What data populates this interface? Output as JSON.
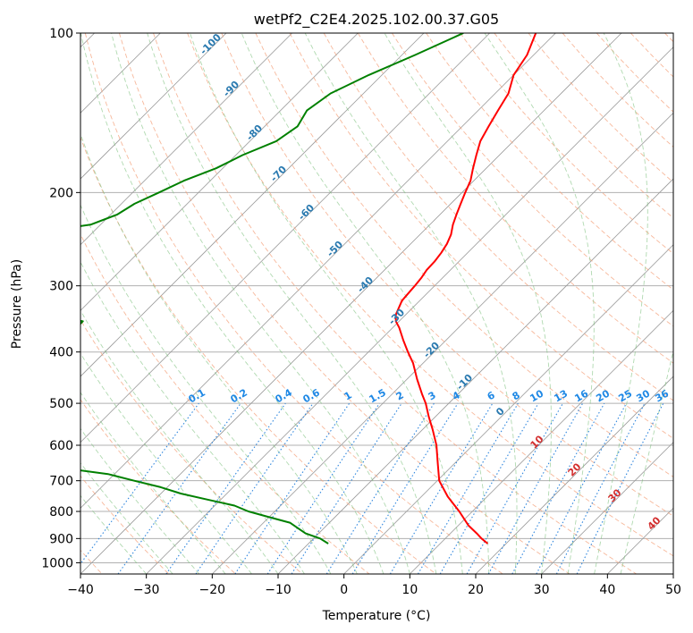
{
  "chart_data": {
    "type": "line",
    "title": "wetPf2_C2E4.2025.102.00.37.G05",
    "xlabel": "Temperature (°C)",
    "ylabel": "Pressure (hPa)",
    "xlim": [
      -40,
      50
    ],
    "ylim": [
      1050,
      100
    ],
    "y_scale": "log",
    "x_ticks": [
      "−40",
      "−30",
      "−20",
      "−10",
      "0",
      "10",
      "20",
      "30",
      "40",
      "50"
    ],
    "y_ticks": [
      "100",
      "200",
      "300",
      "400",
      "500",
      "600",
      "700",
      "800",
      "900",
      "1000"
    ],
    "grid": true,
    "series": [
      {
        "color": "#ff0000",
        "p": [
          100,
          110,
          120,
          130,
          140,
          150,
          160,
          170,
          180,
          190,
          200,
          210,
          220,
          230,
          240,
          250,
          260,
          270,
          280,
          290,
          300,
          320,
          340,
          350,
          360,
          380,
          400,
          420,
          450,
          480,
          500,
          530,
          560,
          600,
          650,
          700,
          750,
          800,
          850,
          880,
          900,
          920
        ],
        "t": [
          -53,
          -51,
          -50,
          -48,
          -47,
          -46,
          -45,
          -43.5,
          -42,
          -40.5,
          -39.5,
          -38.5,
          -37.5,
          -36.5,
          -35.3,
          -34.5,
          -34,
          -33.7,
          -33.6,
          -33.2,
          -33,
          -32.7,
          -31.5,
          -30.5,
          -29,
          -26.5,
          -24,
          -21.5,
          -18.5,
          -15.5,
          -13.5,
          -11,
          -8.5,
          -5.5,
          -2.5,
          0.3,
          4,
          8,
          11.5,
          14,
          15.5,
          17.2
        ]
      },
      {
        "color": "#008000",
        "p": [
          100,
          110,
          120,
          130,
          140,
          150,
          160,
          170,
          180,
          190,
          200,
          210,
          220,
          230,
          240,
          250,
          260,
          270,
          280,
          290,
          300,
          310,
          320,
          330,
          340,
          350,
          360,
          370,
          380,
          390,
          400,
          410,
          420,
          430,
          440,
          450,
          460,
          470,
          480,
          490,
          500,
          510,
          520,
          530,
          540,
          550,
          560,
          570,
          580,
          600,
          620,
          640,
          660,
          680,
          700,
          720,
          740,
          760,
          780,
          800,
          820,
          840,
          860,
          880,
          900,
          920
        ],
        "t": [
          -64,
          -68,
          -72,
          -75,
          -76,
          -75,
          -76,
          -79,
          -81,
          -84,
          -86,
          -88,
          -89,
          -91.5,
          -101,
          -108,
          -111,
          -106,
          -98,
          -105,
          -110,
          -104,
          -97,
          -92,
          -85,
          -78,
          -78,
          -81,
          -90,
          -102,
          -112,
          -111,
          -107,
          -104,
          -100,
          -96,
          -91,
          -90,
          -100,
          -118,
          -125,
          -122,
          -115,
          -105,
          -100,
          -96,
          -96,
          -94,
          -92,
          -83,
          -76,
          -68,
          -60,
          -51,
          -46,
          -41,
          -37,
          -32,
          -27,
          -24,
          -20,
          -16,
          -14,
          -12,
          -9,
          -7
        ]
      }
    ],
    "mixing_ratio_labels": [
      "0.1",
      "0.2",
      "0.4",
      "0.6",
      "1",
      "1.5",
      "2",
      "3",
      "4",
      "6",
      "8",
      "10",
      "13",
      "16",
      "20",
      "25",
      "30",
      "36"
    ],
    "dry_adiabat_labels": [
      "-100",
      "-90",
      "-80",
      "-70",
      "-60",
      "-50",
      "-40",
      "-30",
      "-20",
      "-10",
      "0"
    ],
    "moist_adiabat_labels": [
      "10",
      "20",
      "30",
      "40"
    ]
  }
}
